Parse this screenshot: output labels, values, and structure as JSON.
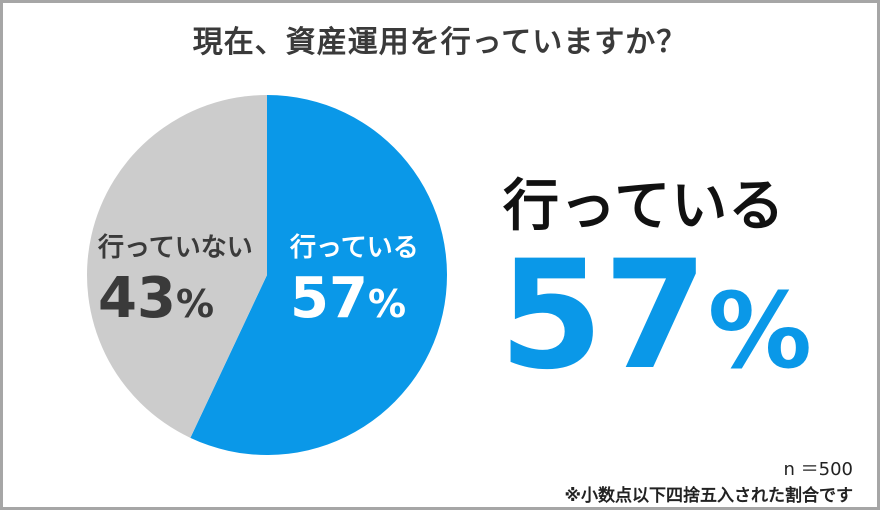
{
  "chart_data": {
    "type": "pie",
    "title": "現在、資産運用を行っていますか？",
    "slices": [
      {
        "label": "行っている",
        "value": 57,
        "color": "#0a98e8"
      },
      {
        "label": "行っていない",
        "value": 43,
        "color": "#cccccc"
      }
    ],
    "unit": "%",
    "legend": "none",
    "grid": false
  },
  "labels": {
    "not_doing": {
      "name": "行っていない",
      "value": "43",
      "unit": "%"
    },
    "doing": {
      "name": "行っている",
      "value": "57",
      "unit": "%"
    }
  },
  "highlight": {
    "label": "行っている",
    "value": "57",
    "unit": "%"
  },
  "notes": {
    "sample": "n ＝500",
    "rounding": "※小数点以下四捨五入された割合です"
  }
}
